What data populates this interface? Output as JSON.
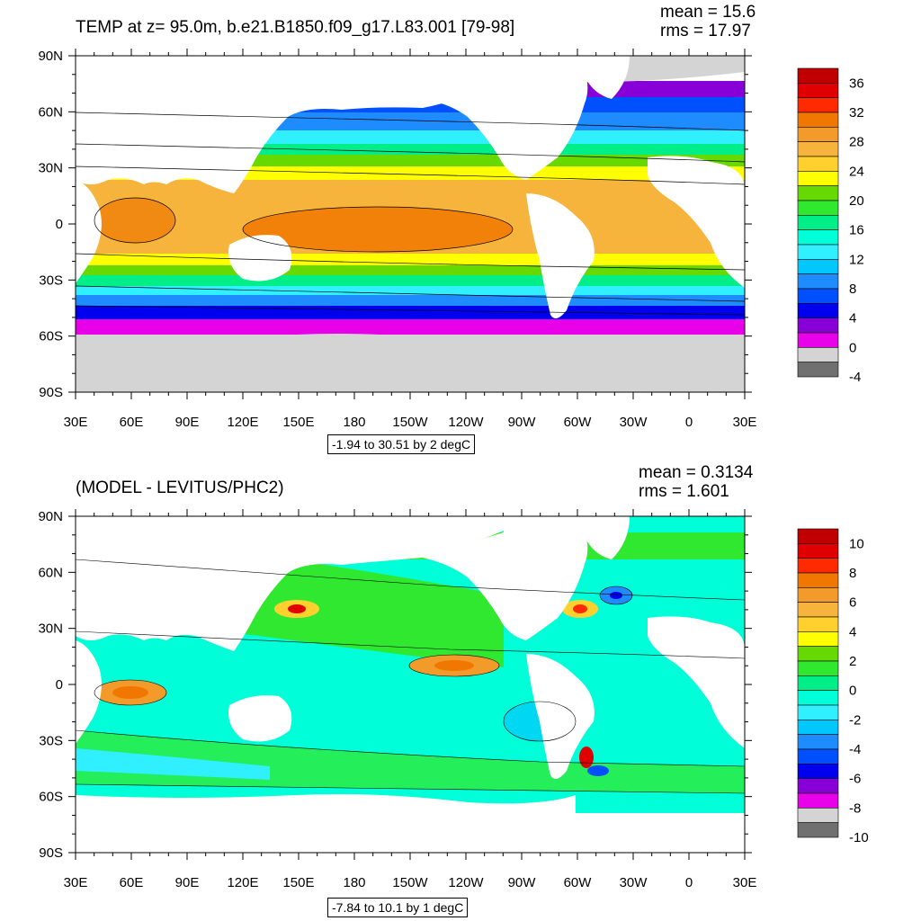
{
  "panels": [
    {
      "title": "TEMP at z=  95.0m, b.e21.B1850.f09_g17.L83.001 [79-98]",
      "mean_text": "mean = 15.6",
      "rms_text": "rms = 17.97",
      "range_text": "-1.94 to 30.51 by 2 degC",
      "lat_labels": [
        "90N",
        "60N",
        "30N",
        "0",
        "30S",
        "60S",
        "90S"
      ],
      "lon_labels": [
        "30E",
        "60E",
        "90E",
        "120E",
        "150E",
        "180",
        "150W",
        "120W",
        "90W",
        "60W",
        "30W",
        "0",
        "30E"
      ],
      "colorbar": {
        "labels": [
          "36",
          "32",
          "28",
          "24",
          "20",
          "16",
          "12",
          "8",
          "4",
          "0",
          "-4"
        ],
        "colors": [
          "#c00000",
          "#e00000",
          "#ff2a00",
          "#f07800",
          "#f29a2a",
          "#f6b43c",
          "#ffd02e",
          "#ffff00",
          "#66d900",
          "#30e830",
          "#00ee88",
          "#00ffd8",
          "#30f0ff",
          "#00c8ff",
          "#1e8cff",
          "#0050ff",
          "#0000ee",
          "#8800d8",
          "#e800e8",
          "#d4d4d4",
          "#707070"
        ]
      }
    },
    {
      "title": "(MODEL - LEVITUS/PHC2)",
      "mean_text": "mean = 0.3134",
      "rms_text": "rms = 1.601",
      "range_text": "-7.84 to 10.1 by 1 degC",
      "lat_labels": [
        "90N",
        "60N",
        "30N",
        "0",
        "30S",
        "60S",
        "90S"
      ],
      "lon_labels": [
        "30E",
        "60E",
        "90E",
        "120E",
        "150E",
        "180",
        "150W",
        "120W",
        "90W",
        "60W",
        "30W",
        "0",
        "30E"
      ],
      "colorbar": {
        "labels": [
          "10",
          "8",
          "6",
          "4",
          "2",
          "0",
          "-2",
          "-4",
          "-6",
          "-8",
          "-10"
        ],
        "colors": [
          "#c00000",
          "#e00000",
          "#ff2a00",
          "#f07800",
          "#f29a2a",
          "#f6b43c",
          "#ffd02e",
          "#ffff00",
          "#66d900",
          "#30e830",
          "#00ee88",
          "#00ffd8",
          "#30f0ff",
          "#00c8ff",
          "#1e8cff",
          "#0050ff",
          "#0000ee",
          "#8800d8",
          "#e800e8",
          "#d4d4d4",
          "#707070"
        ]
      }
    }
  ]
}
